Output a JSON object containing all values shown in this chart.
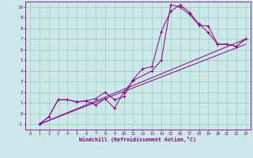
{
  "xlabel": "Windchill (Refroidissement éolien,°C)",
  "bg_color": "#cce8e8",
  "line_color": "#880088",
  "grid_color": "#99ccbb",
  "xlim": [
    -0.5,
    23.5
  ],
  "ylim": [
    -1.5,
    10.5
  ],
  "xticks": [
    0,
    1,
    2,
    3,
    4,
    5,
    6,
    7,
    8,
    9,
    10,
    11,
    12,
    13,
    14,
    15,
    16,
    17,
    18,
    19,
    20,
    21,
    22,
    23
  ],
  "yticks": [
    -1,
    0,
    1,
    2,
    3,
    4,
    5,
    6,
    7,
    8,
    9,
    10
  ],
  "line1_x": [
    1,
    2,
    3,
    4,
    5,
    6,
    7,
    8,
    9,
    10,
    11,
    13,
    14,
    15,
    16,
    17,
    18,
    19,
    20,
    21,
    22,
    23
  ],
  "line1_y": [
    -1.0,
    -0.3,
    1.3,
    1.3,
    1.1,
    1.2,
    0.8,
    1.4,
    0.5,
    2.0,
    3.1,
    4.0,
    5.0,
    10.2,
    10.0,
    9.3,
    8.3,
    8.2,
    6.5,
    6.5,
    6.3,
    7.0
  ],
  "line2_x": [
    1,
    2,
    3,
    4,
    5,
    6,
    7,
    8,
    9,
    10,
    11,
    12,
    13,
    14,
    15,
    16,
    17,
    18,
    19,
    20,
    21,
    22,
    23
  ],
  "line2_y": [
    -1.0,
    -0.3,
    1.3,
    1.3,
    1.1,
    1.2,
    1.4,
    2.0,
    1.3,
    1.6,
    3.2,
    4.2,
    4.4,
    7.7,
    9.6,
    10.2,
    9.5,
    8.4,
    7.6,
    6.5,
    6.5,
    6.3,
    7.0
  ],
  "line3_x": [
    1,
    23
  ],
  "line3_y": [
    -1.0,
    7.0
  ],
  "line4_x": [
    1,
    23
  ],
  "line4_y": [
    -1.0,
    6.5
  ]
}
